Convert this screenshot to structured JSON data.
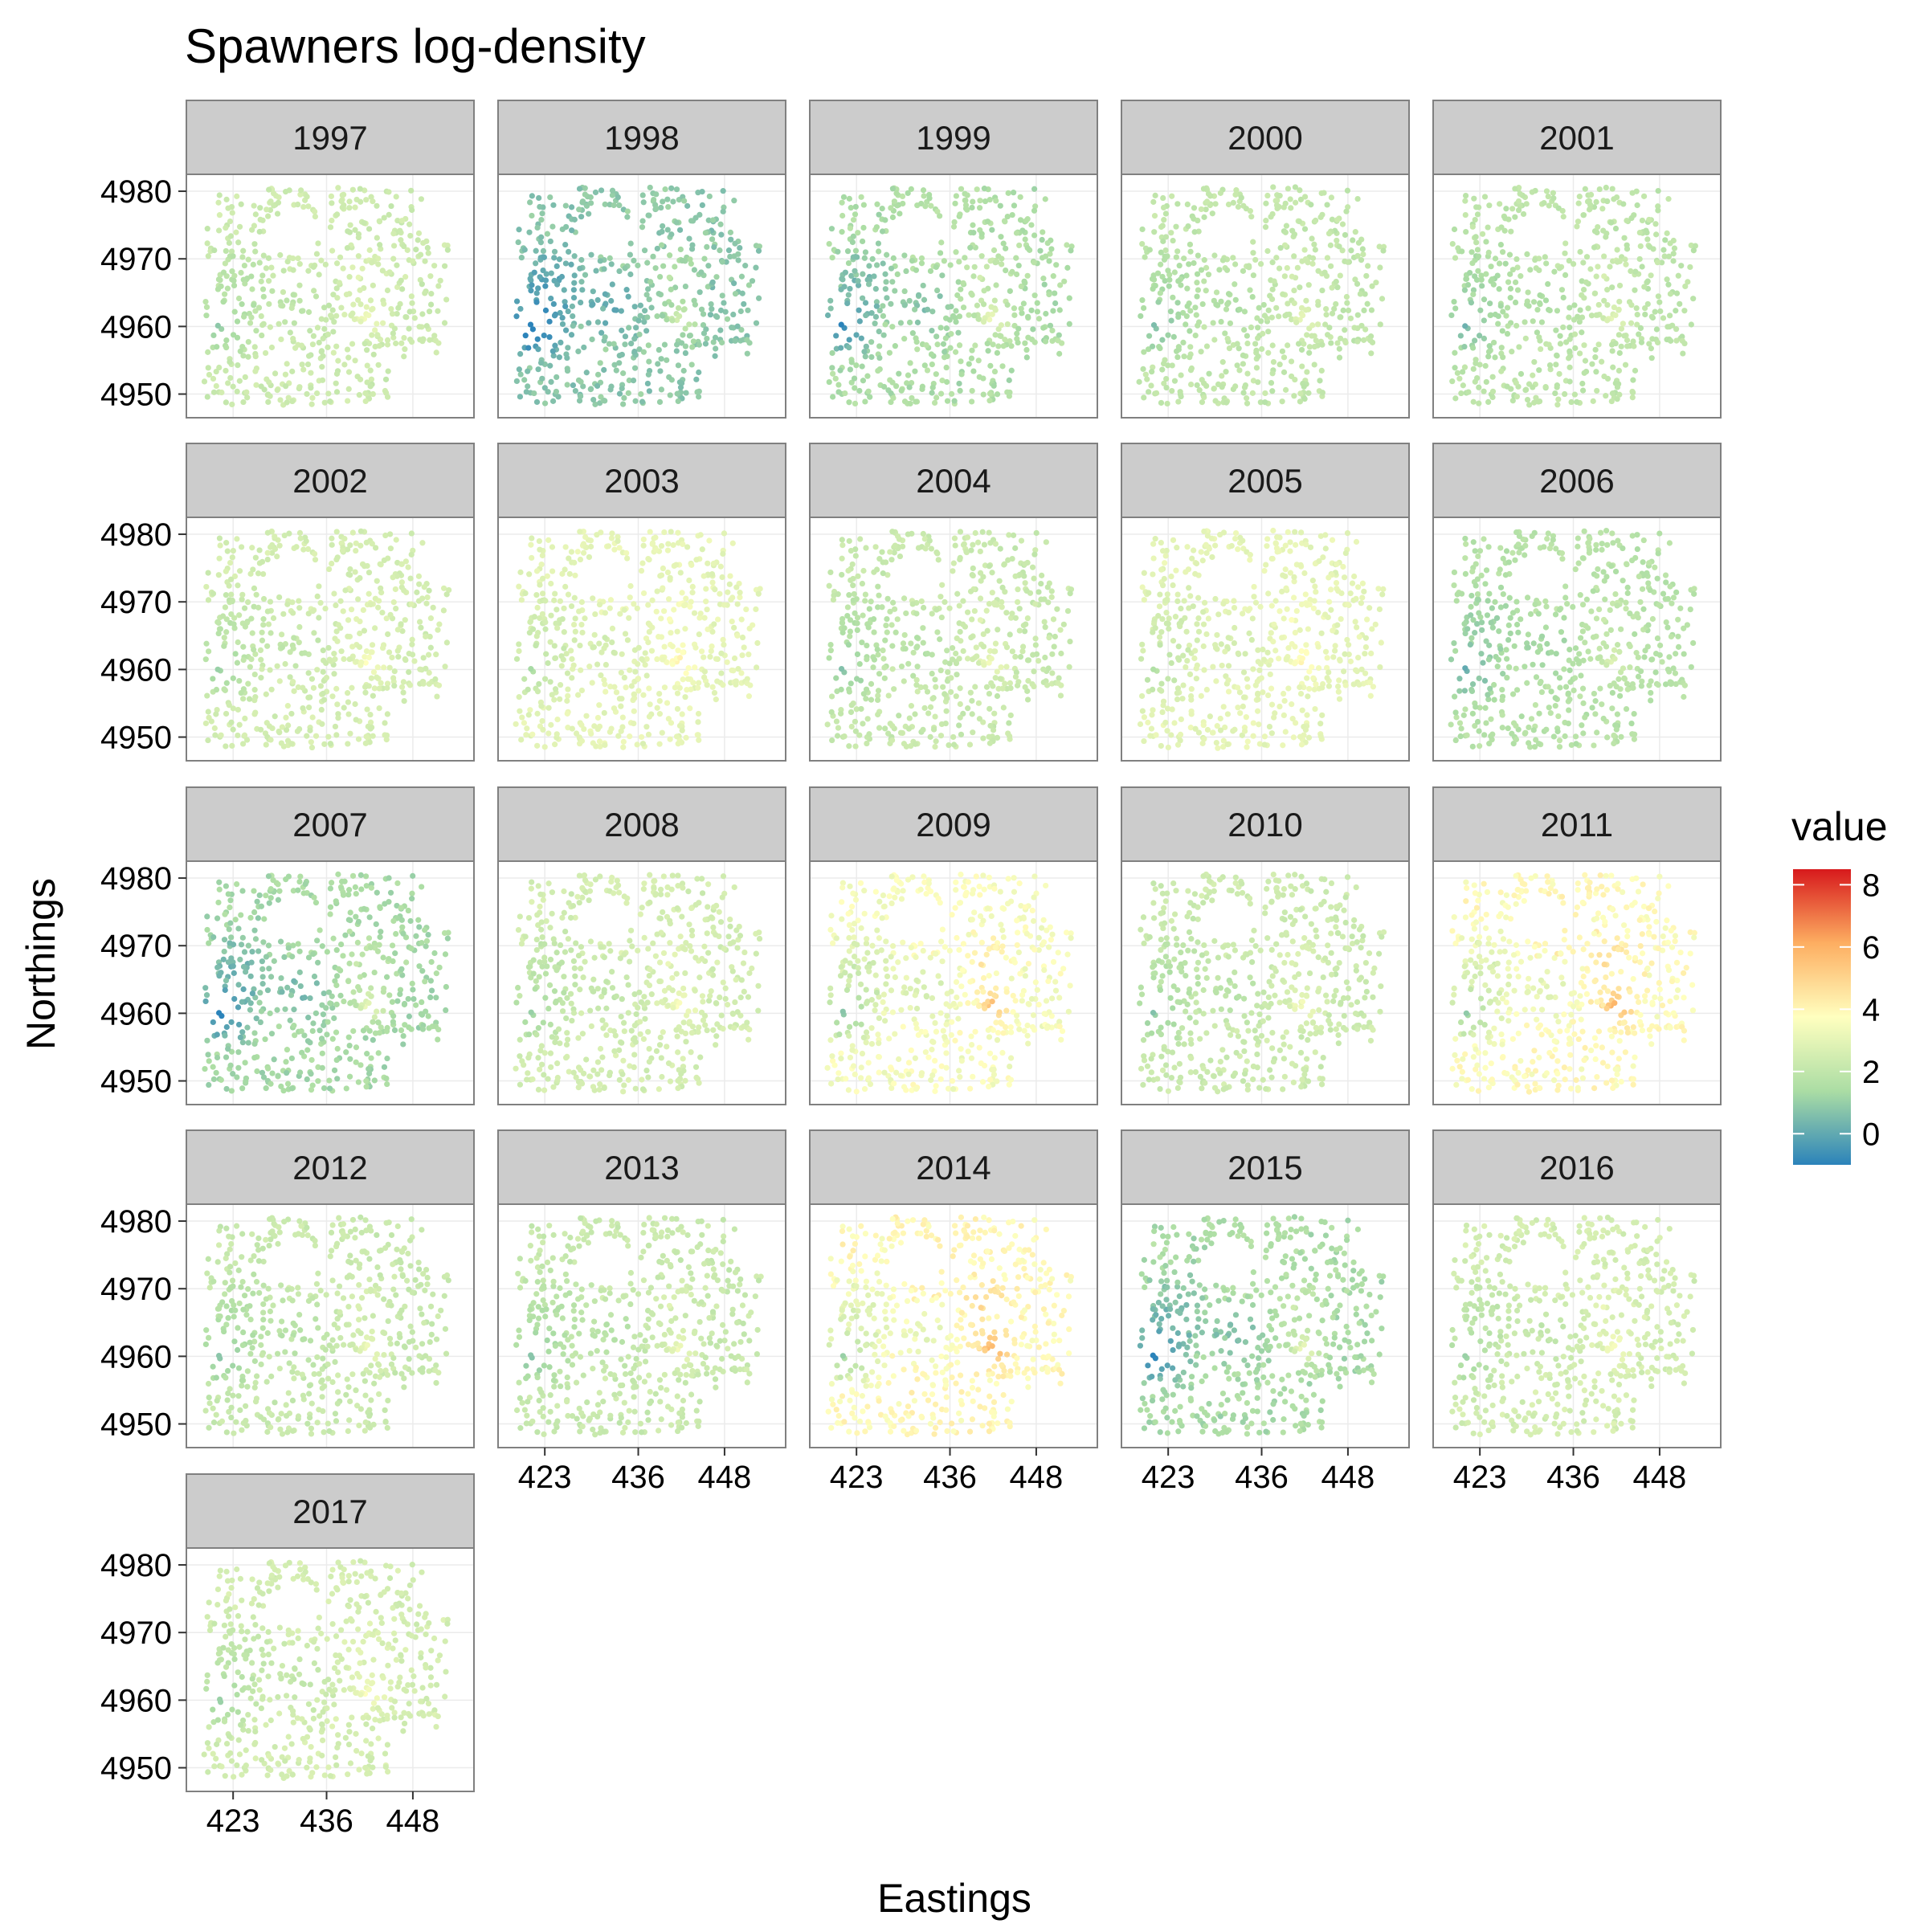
{
  "chart_data": {
    "type": "scatter",
    "title": "Spawners log-density",
    "xlabel": "Eastings",
    "ylabel": "Northings",
    "facet_by": "year",
    "facet_layout": {
      "columns": 5,
      "rows": 5
    },
    "facets": [
      "1997",
      "1998",
      "1999",
      "2000",
      "2001",
      "2002",
      "2003",
      "2004",
      "2005",
      "2006",
      "2007",
      "2008",
      "2009",
      "2010",
      "2011",
      "2012",
      "2013",
      "2014",
      "2015",
      "2016",
      "2017"
    ],
    "x_ticks": [
      423,
      436,
      448
    ],
    "y_ticks": [
      4950,
      4960,
      4970,
      4980
    ],
    "x_tick_labels": [
      "423",
      "436",
      "448"
    ],
    "y_tick_labels": [
      "4950",
      "4960",
      "4970",
      "4980"
    ],
    "xlim": [
      416.5,
      456.5
    ],
    "ylim": [
      4946.5,
      4982.5
    ],
    "grid": true,
    "legend": {
      "title": "value",
      "position": "right",
      "range": [
        -1,
        8.5
      ],
      "ticks": [
        0,
        2,
        4,
        6,
        8
      ],
      "tick_labels": [
        "0",
        "2",
        "4",
        "6",
        "8"
      ],
      "colors": [
        "#2b83ba",
        "#abdda4",
        "#ffffbf",
        "#fdae61",
        "#d7191c"
      ]
    },
    "year_mean_value": {
      "1997": 2.3,
      "1998": 0.8,
      "1999": 1.5,
      "2000": 2.0,
      "2001": 1.9,
      "2002": 2.5,
      "2003": 3.0,
      "2004": 2.2,
      "2005": 3.0,
      "2006": 1.7,
      "2007": 1.3,
      "2008": 2.5,
      "2009": 3.5,
      "2010": 2.3,
      "2011": 3.8,
      "2012": 2.2,
      "2013": 2.2,
      "2014": 3.9,
      "2015": 1.4,
      "2016": 2.5,
      "2017": 2.5
    }
  }
}
